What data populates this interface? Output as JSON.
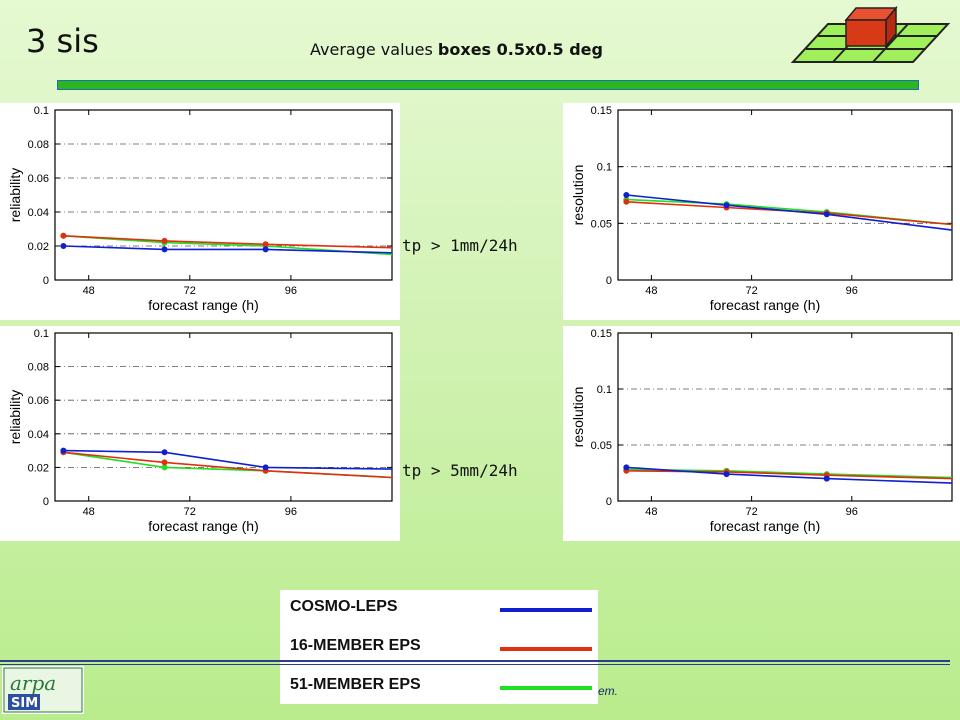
{
  "slide": {
    "title": "3 sis",
    "subtitle_prefix": "Average values ",
    "subtitle_bold": "boxes 0.5x0.5 deg",
    "footer_fragment": "em."
  },
  "thresholds": [
    "tp > 1mm/24h",
    "tp > 5mm/24h"
  ],
  "legend": [
    {
      "label": "COSMO-LEPS",
      "color": "#1020d0"
    },
    {
      "label": "16-MEMBER EPS",
      "color": "#e03010"
    },
    {
      "label": "51-MEMBER EPS",
      "color": "#20e020"
    }
  ],
  "chart_data": [
    {
      "type": "line",
      "ylabel": "reliability",
      "xlabel": "forecast range (h)",
      "xlim": [
        40,
        120
      ],
      "ylim": [
        0,
        0.1
      ],
      "xticks": [
        48,
        72,
        96
      ],
      "yticks": [
        0,
        0.02,
        0.04,
        0.06,
        0.08,
        0.1
      ],
      "ytick_labels": [
        "0",
        "0.02",
        "0.04",
        "0.06",
        "0.08",
        "0.1"
      ],
      "grid": "dash-dot horizontal",
      "series": [
        {
          "name": "COSMO-LEPS",
          "color": "#1020d0",
          "x": [
            42,
            66,
            90,
            120
          ],
          "y": [
            0.02,
            0.018,
            0.018,
            0.016
          ],
          "markers": [
            true,
            true,
            true,
            false
          ]
        },
        {
          "name": "16-MEMBER EPS",
          "color": "#e03010",
          "x": [
            42,
            66,
            90,
            120
          ],
          "y": [
            0.026,
            0.023,
            0.021,
            0.019
          ],
          "markers": [
            true,
            true,
            true,
            false
          ]
        },
        {
          "name": "51-MEMBER EPS",
          "color": "#20e020",
          "x": [
            42,
            66,
            90,
            120
          ],
          "y": [
            0.026,
            0.022,
            0.02,
            0.015
          ],
          "markers": [
            true,
            true,
            true,
            false
          ]
        }
      ]
    },
    {
      "type": "line",
      "ylabel": "resolution",
      "xlabel": "forecast range (h)",
      "xlim": [
        40,
        120
      ],
      "ylim": [
        0,
        0.15
      ],
      "xticks": [
        48,
        72,
        96
      ],
      "yticks": [
        0,
        0.05,
        0.1,
        0.15
      ],
      "ytick_labels": [
        "0",
        "0.05",
        "0.1",
        "0.15"
      ],
      "grid": "dash-dot horizontal",
      "series": [
        {
          "name": "COSMO-LEPS",
          "color": "#1020d0",
          "x": [
            42,
            66,
            90,
            120
          ],
          "y": [
            0.075,
            0.066,
            0.058,
            0.044
          ],
          "markers": [
            true,
            true,
            true,
            false
          ]
        },
        {
          "name": "16-MEMBER EPS",
          "color": "#e03010",
          "x": [
            42,
            66,
            90,
            120
          ],
          "y": [
            0.069,
            0.064,
            0.059,
            0.049
          ],
          "markers": [
            true,
            true,
            true,
            false
          ]
        },
        {
          "name": "51-MEMBER EPS",
          "color": "#20e020",
          "x": [
            42,
            66,
            90,
            120
          ],
          "y": [
            0.071,
            0.067,
            0.06,
            0.049
          ],
          "markers": [
            true,
            true,
            true,
            false
          ]
        }
      ]
    },
    {
      "type": "line",
      "ylabel": "reliability",
      "xlabel": "forecast range (h)",
      "xlim": [
        40,
        120
      ],
      "ylim": [
        0,
        0.1
      ],
      "xticks": [
        48,
        72,
        96
      ],
      "yticks": [
        0,
        0.02,
        0.04,
        0.06,
        0.08,
        0.1
      ],
      "ytick_labels": [
        "0",
        "0.02",
        "0.04",
        "0.06",
        "0.08",
        "0.1"
      ],
      "grid": "dash-dot horizontal",
      "series": [
        {
          "name": "COSMO-LEPS",
          "color": "#1020d0",
          "x": [
            42,
            66,
            90,
            120
          ],
          "y": [
            0.03,
            0.029,
            0.02,
            0.019
          ],
          "markers": [
            true,
            true,
            true,
            false
          ]
        },
        {
          "name": "16-MEMBER EPS",
          "color": "#e03010",
          "x": [
            42,
            66,
            90,
            120
          ],
          "y": [
            0.029,
            0.023,
            0.018,
            0.014
          ],
          "markers": [
            true,
            true,
            true,
            false
          ]
        },
        {
          "name": "51-MEMBER EPS",
          "color": "#20e020",
          "x": [
            42,
            66,
            90,
            120
          ],
          "y": [
            0.029,
            0.02,
            0.018,
            0.014
          ],
          "markers": [
            true,
            true,
            true,
            false
          ]
        }
      ]
    },
    {
      "type": "line",
      "ylabel": "resolution",
      "xlabel": "forecast range (h)",
      "xlim": [
        40,
        120
      ],
      "ylim": [
        0,
        0.15
      ],
      "xticks": [
        48,
        72,
        96
      ],
      "yticks": [
        0,
        0.05,
        0.1,
        0.15
      ],
      "ytick_labels": [
        "0",
        "0.05",
        "0.1",
        "0.15"
      ],
      "grid": "dash-dot horizontal",
      "series": [
        {
          "name": "COSMO-LEPS",
          "color": "#1020d0",
          "x": [
            42,
            66,
            90,
            120
          ],
          "y": [
            0.03,
            0.024,
            0.02,
            0.016
          ],
          "markers": [
            true,
            true,
            true,
            false
          ]
        },
        {
          "name": "16-MEMBER EPS",
          "color": "#e03010",
          "x": [
            42,
            66,
            90,
            120
          ],
          "y": [
            0.027,
            0.026,
            0.023,
            0.02
          ],
          "markers": [
            true,
            true,
            true,
            false
          ]
        },
        {
          "name": "51-MEMBER EPS",
          "color": "#20e020",
          "x": [
            42,
            66,
            90,
            120
          ],
          "y": [
            0.028,
            0.027,
            0.024,
            0.021
          ],
          "markers": [
            true,
            true,
            true,
            false
          ]
        }
      ]
    }
  ]
}
